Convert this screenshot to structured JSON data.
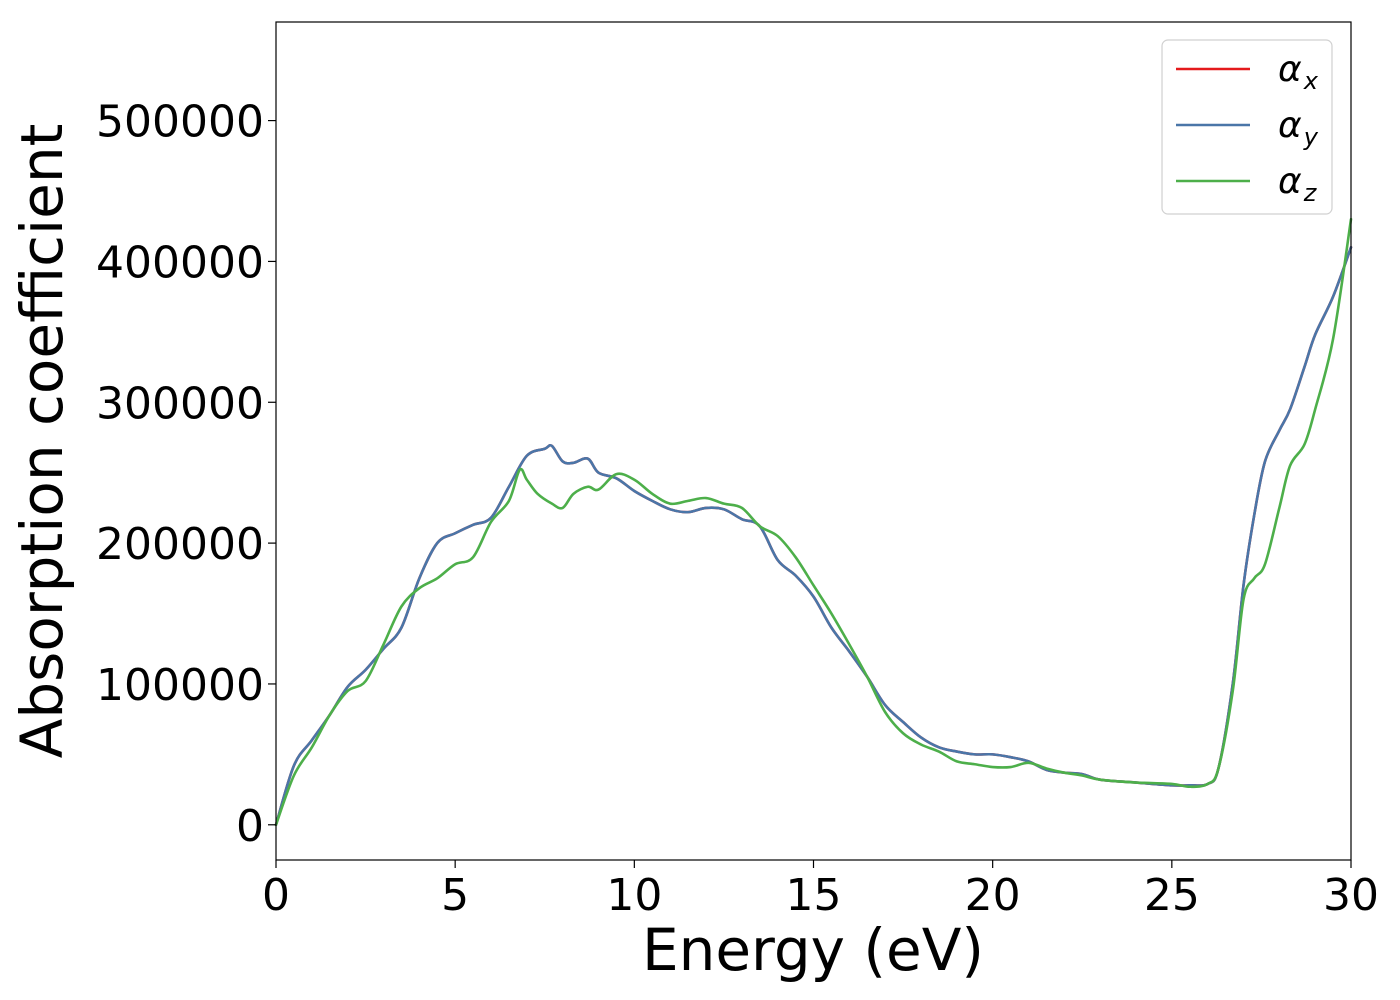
{
  "chart_data": {
    "type": "line",
    "title": "",
    "xlabel": "Energy (eV)",
    "ylabel": "Absorption coefficient",
    "xlim": [
      0,
      30
    ],
    "ylim": [
      -25000,
      570000
    ],
    "xticks": [
      0,
      5,
      10,
      15,
      20,
      25,
      30
    ],
    "xtick_labels": [
      "0",
      "5",
      "10",
      "15",
      "20",
      "25",
      "30"
    ],
    "yticks": [
      0,
      100000,
      200000,
      300000,
      400000,
      500000
    ],
    "ytick_labels": [
      "0",
      "100000",
      "200000",
      "300000",
      "400000",
      "500000"
    ],
    "grid": false,
    "legend_position": "top-right",
    "series": [
      {
        "name": "α_x",
        "legend_symbol": "α",
        "legend_subscript": "x",
        "color": "#e41a1c",
        "x": [
          0,
          0.5,
          1,
          1.5,
          2,
          2.5,
          3,
          3.5,
          4,
          4.5,
          5,
          5.5,
          6,
          6.5,
          7,
          7.5,
          7.7,
          8,
          8.3,
          8.7,
          9,
          9.5,
          10,
          10.5,
          11,
          11.5,
          12,
          12.5,
          13,
          13.5,
          14,
          14.5,
          15,
          15.5,
          16,
          16.5,
          17,
          17.5,
          18,
          18.5,
          19,
          19.5,
          20,
          20.5,
          21,
          21.5,
          22,
          22.5,
          23,
          24,
          25,
          25.5,
          26,
          26.3,
          26.7,
          27,
          27.3,
          27.6,
          28,
          28.3,
          28.7,
          29,
          29.5,
          30
        ],
        "y": [
          0,
          42000,
          60000,
          78000,
          98000,
          110000,
          125000,
          140000,
          175000,
          200000,
          207000,
          213000,
          218000,
          240000,
          262000,
          267000,
          269000,
          258000,
          257000,
          260000,
          250000,
          246000,
          237000,
          230000,
          224000,
          222000,
          225000,
          224000,
          217000,
          212000,
          188000,
          177000,
          162000,
          140000,
          123000,
          105000,
          85000,
          73000,
          62000,
          55000,
          52000,
          50000,
          50000,
          48000,
          45000,
          39000,
          37000,
          36000,
          32000,
          30000,
          28000,
          28000,
          29000,
          40000,
          100000,
          170000,
          220000,
          258000,
          280000,
          295000,
          325000,
          348000,
          375000,
          410000
        ]
      },
      {
        "name": "α_y",
        "legend_symbol": "α",
        "legend_subscript": "y",
        "color": "#4a76a8",
        "x": [
          0,
          0.5,
          1,
          1.5,
          2,
          2.5,
          3,
          3.5,
          4,
          4.5,
          5,
          5.5,
          6,
          6.5,
          7,
          7.5,
          7.7,
          8,
          8.3,
          8.7,
          9,
          9.5,
          10,
          10.5,
          11,
          11.5,
          12,
          12.5,
          13,
          13.5,
          14,
          14.5,
          15,
          15.5,
          16,
          16.5,
          17,
          17.5,
          18,
          18.5,
          19,
          19.5,
          20,
          20.5,
          21,
          21.5,
          22,
          22.5,
          23,
          24,
          25,
          25.5,
          26,
          26.3,
          26.7,
          27,
          27.3,
          27.6,
          28,
          28.3,
          28.7,
          29,
          29.5,
          30
        ],
        "y": [
          0,
          42000,
          60000,
          78000,
          98000,
          110000,
          125000,
          140000,
          175000,
          200000,
          207000,
          213000,
          218000,
          240000,
          262000,
          267000,
          269000,
          258000,
          257000,
          260000,
          250000,
          246000,
          237000,
          230000,
          224000,
          222000,
          225000,
          224000,
          217000,
          212000,
          188000,
          177000,
          162000,
          140000,
          123000,
          105000,
          85000,
          73000,
          62000,
          55000,
          52000,
          50000,
          50000,
          48000,
          45000,
          39000,
          37000,
          36000,
          32000,
          30000,
          28000,
          28000,
          29000,
          40000,
          100000,
          170000,
          220000,
          258000,
          280000,
          295000,
          325000,
          348000,
          375000,
          410000
        ]
      },
      {
        "name": "α_z",
        "legend_symbol": "α",
        "legend_subscript": "z",
        "color": "#4daf4a",
        "x": [
          0,
          0.5,
          1,
          1.5,
          2,
          2.5,
          3,
          3.5,
          4,
          4.5,
          5,
          5.5,
          6,
          6.5,
          6.8,
          7,
          7.3,
          7.7,
          8,
          8.3,
          8.7,
          9,
          9.5,
          10,
          10.5,
          11,
          11.5,
          12,
          12.5,
          13,
          13.5,
          14,
          14.5,
          15,
          15.5,
          16,
          16.5,
          17,
          17.5,
          18,
          18.5,
          19,
          19.5,
          20,
          20.5,
          21,
          21.5,
          22,
          22.5,
          23,
          24,
          25,
          25.5,
          26,
          26.3,
          26.7,
          27,
          27.3,
          27.6,
          28,
          28.3,
          28.7,
          29,
          29.5,
          30
        ],
        "y": [
          0,
          35000,
          55000,
          78000,
          95000,
          102000,
          128000,
          155000,
          168000,
          175000,
          185000,
          190000,
          215000,
          230000,
          252000,
          245000,
          235000,
          228000,
          225000,
          235000,
          240000,
          238000,
          249000,
          245000,
          235000,
          228000,
          230000,
          232000,
          228000,
          225000,
          212000,
          205000,
          190000,
          170000,
          150000,
          128000,
          105000,
          80000,
          65000,
          57000,
          52000,
          45000,
          43000,
          41000,
          41000,
          44000,
          40000,
          37000,
          35000,
          32000,
          30000,
          29000,
          27000,
          29000,
          40000,
          95000,
          160000,
          175000,
          185000,
          225000,
          255000,
          270000,
          295000,
          345000,
          430000
        ]
      }
    ]
  }
}
